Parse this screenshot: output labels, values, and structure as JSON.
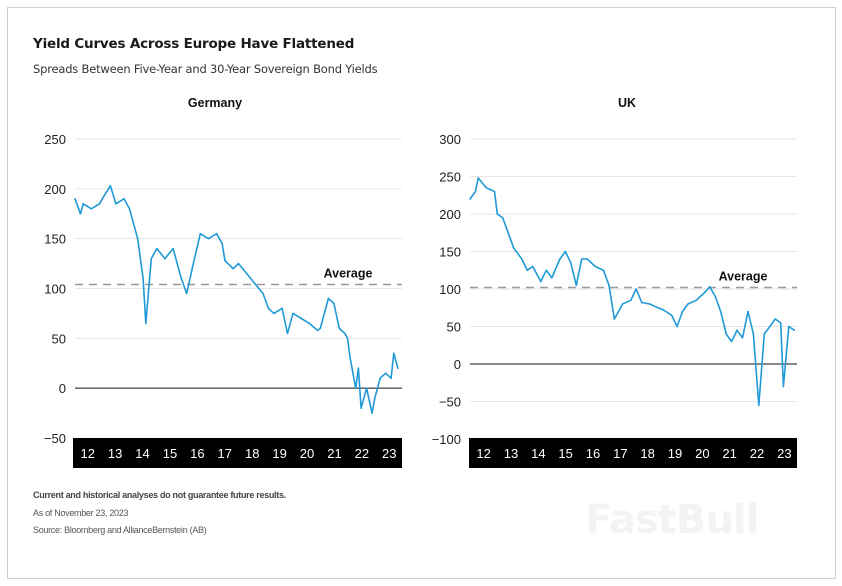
{
  "title": "Yield Curves Across Europe Have Flattened",
  "subtitle": "Spreads Between Five-Year and 30-Year Sovereign Bond Yields",
  "footnotes": {
    "disclaimer": "Current and historical analyses do not  guarantee future results.",
    "as_of": "As of November 23, 2023",
    "source": "Source: Bloomberg and AllianceBernstein (AB)"
  },
  "watermark": "FastBull",
  "colors": {
    "line": "#1f9ad6",
    "average": "#9a9a9a",
    "axis_band": "#000000",
    "grid": "#e6e6e6"
  },
  "chart_data": [
    {
      "type": "line",
      "title": "Germany",
      "ylim": [
        -50,
        250
      ],
      "yticks": [
        250,
        200,
        150,
        100,
        50,
        0,
        -50
      ],
      "xlim": [
        2012,
        2024
      ],
      "xtick_labels": [
        "12",
        "13",
        "14",
        "15",
        "16",
        "17",
        "18",
        "19",
        "20",
        "21",
        "22",
        "23"
      ],
      "grid": true,
      "average": {
        "label": "Average",
        "value": 104
      },
      "x": [
        2012.0,
        2012.2,
        2012.3,
        2012.6,
        2012.9,
        2013.0,
        2013.3,
        2013.5,
        2013.8,
        2014.0,
        2014.3,
        2014.5,
        2014.6,
        2014.8,
        2015.0,
        2015.3,
        2015.6,
        2015.9,
        2016.1,
        2016.3,
        2016.6,
        2016.9,
        2017.2,
        2017.4,
        2017.5,
        2017.8,
        2018.0,
        2018.3,
        2018.6,
        2018.9,
        2019.1,
        2019.3,
        2019.6,
        2019.8,
        2020.0,
        2020.3,
        2020.6,
        2020.9,
        2021.0,
        2021.3,
        2021.5,
        2021.7,
        2021.9,
        2022.0,
        2022.1,
        2022.3,
        2022.4,
        2022.5,
        2022.7,
        2022.9,
        2023.0,
        2023.2,
        2023.4,
        2023.6,
        2023.7,
        2023.85
      ],
      "values": [
        190,
        175,
        185,
        180,
        185,
        190,
        203,
        185,
        190,
        180,
        150,
        110,
        65,
        130,
        140,
        130,
        140,
        110,
        95,
        120,
        155,
        150,
        155,
        145,
        128,
        120,
        125,
        115,
        105,
        95,
        80,
        75,
        80,
        55,
        75,
        70,
        65,
        58,
        60,
        90,
        85,
        60,
        55,
        50,
        30,
        0,
        20,
        -20,
        0,
        -25,
        -10,
        10,
        15,
        10,
        35,
        20
      ]
    },
    {
      "type": "line",
      "title": "UK",
      "ylim": [
        -100,
        300
      ],
      "yticks": [
        300,
        250,
        200,
        150,
        100,
        50,
        0,
        -50,
        -100
      ],
      "xlim": [
        2012,
        2024
      ],
      "xtick_labels": [
        "12",
        "13",
        "14",
        "15",
        "16",
        "17",
        "18",
        "19",
        "20",
        "21",
        "22",
        "23"
      ],
      "grid": true,
      "average": {
        "label": "Average",
        "value": 102
      },
      "x": [
        2012.0,
        2012.2,
        2012.3,
        2012.6,
        2012.9,
        2013.0,
        2013.2,
        2013.4,
        2013.6,
        2013.9,
        2014.1,
        2014.3,
        2014.6,
        2014.8,
        2015.0,
        2015.3,
        2015.5,
        2015.7,
        2015.9,
        2016.1,
        2016.3,
        2016.6,
        2016.9,
        2017.1,
        2017.3,
        2017.6,
        2017.9,
        2018.1,
        2018.3,
        2018.6,
        2018.9,
        2019.1,
        2019.4,
        2019.6,
        2019.8,
        2020.0,
        2020.3,
        2020.6,
        2020.8,
        2021.0,
        2021.2,
        2021.4,
        2021.6,
        2021.8,
        2022.0,
        2022.2,
        2022.4,
        2022.6,
        2022.8,
        2023.0,
        2023.2,
        2023.4,
        2023.5,
        2023.6,
        2023.7,
        2023.9
      ],
      "values": [
        220,
        230,
        248,
        235,
        230,
        200,
        195,
        175,
        155,
        140,
        125,
        130,
        110,
        125,
        115,
        140,
        150,
        135,
        105,
        140,
        140,
        130,
        125,
        105,
        60,
        80,
        85,
        100,
        82,
        80,
        75,
        72,
        65,
        50,
        70,
        80,
        85,
        95,
        103,
        90,
        70,
        40,
        30,
        45,
        35,
        70,
        40,
        -55,
        40,
        50,
        60,
        55,
        -30,
        10,
        50,
        45
      ]
    }
  ]
}
